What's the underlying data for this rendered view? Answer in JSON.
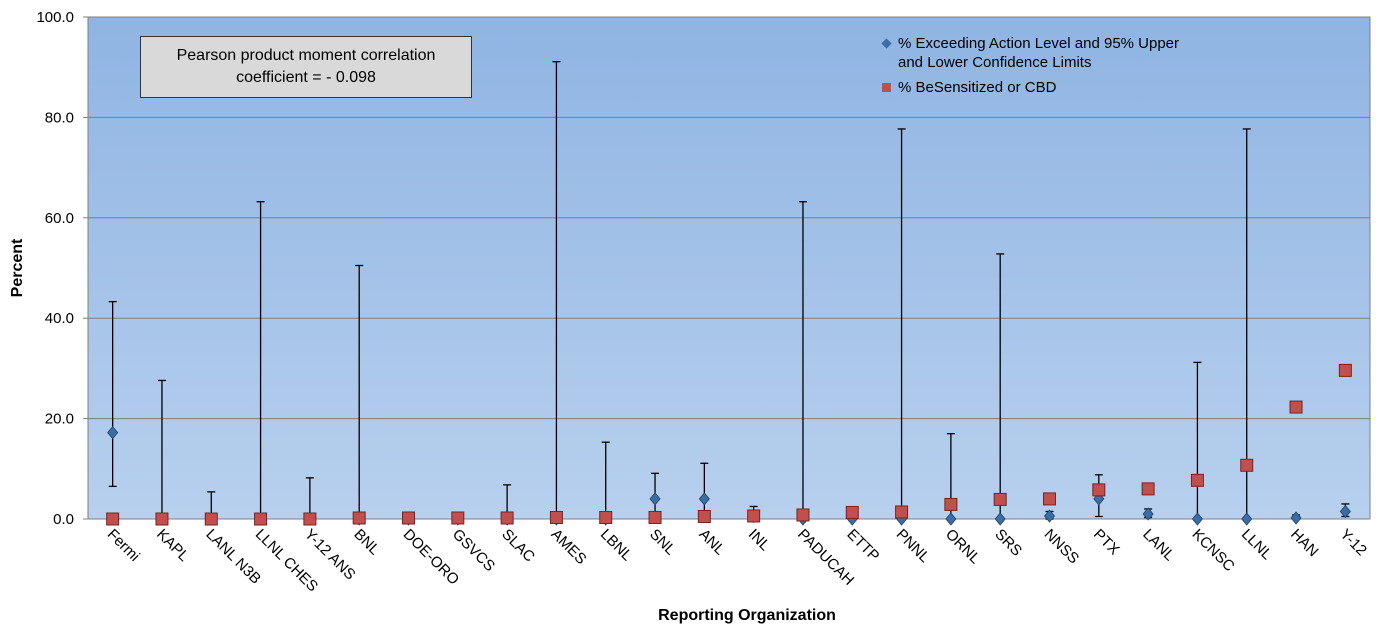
{
  "chart_data": {
    "type": "scatter",
    "title_annotation": [
      "Pearson product moment correlation",
      "coefficient = - 0.098"
    ],
    "xlabel": "Reporting Organization",
    "ylabel": "Percent",
    "categories": [
      "Fermi",
      "KAPL",
      "LANL N3B",
      "LLNL CHES",
      "Y-12 ANS",
      "BNL",
      "DOE-ORO",
      "GSVCS",
      "SLAC",
      "AMES",
      "LBNL",
      "SNL",
      "ANL",
      "INL",
      "PADUCAH",
      "ETTP",
      "PNNL",
      "ORNL",
      "SRS",
      "NNSS",
      "PTX",
      "LANL",
      "KCNSC",
      "LLNL",
      "HAN",
      "Y-12"
    ],
    "series": [
      {
        "name": "% Exceeding Action Level and 95% Upper and Lower Confidence Limits",
        "color": "#3b6ea5",
        "marker": "diamond",
        "values": [
          17.2,
          0,
          0,
          0,
          0,
          0,
          0,
          0,
          0,
          0,
          0,
          4.0,
          4.0,
          0.5,
          0,
          0,
          0,
          0,
          0,
          0.6,
          4.0,
          1.0,
          0,
          0,
          0.2,
          1.5
        ],
        "lower": [
          6.5,
          0,
          0,
          0,
          0,
          0,
          0,
          0,
          0,
          0,
          0,
          0.5,
          0.5,
          0,
          0,
          0,
          0,
          0,
          0,
          0,
          0.5,
          0.3,
          0,
          0,
          0,
          0.5
        ],
        "upper": [
          43.3,
          27.6,
          5.4,
          63.2,
          8.2,
          50.5,
          0,
          0,
          6.8,
          91.1,
          15.3,
          9.1,
          11.1,
          2.5,
          63.2,
          0,
          77.7,
          17.0,
          52.8,
          1.5,
          8.8,
          2.0,
          31.2,
          77.7,
          0.8,
          3.0
        ]
      },
      {
        "name": "% BeSensitized or CBD",
        "color": "#c0504d",
        "marker": "square",
        "values": [
          0,
          0,
          0,
          0,
          0,
          0.2,
          0.2,
          0.2,
          0.2,
          0.3,
          0.3,
          0.3,
          0.5,
          0.6,
          0.8,
          1.3,
          1.4,
          2.9,
          3.9,
          4.0,
          5.8,
          6.0,
          7.7,
          10.7,
          22.3,
          29.6
        ]
      }
    ],
    "ylim": [
      0,
      100
    ],
    "yticks": [
      {
        "value": 0,
        "label": "0.0"
      },
      {
        "value": 20,
        "label": "20.0"
      },
      {
        "value": 40,
        "label": "40.0"
      },
      {
        "value": 60,
        "label": "60.0"
      },
      {
        "value": 80,
        "label": "80.0"
      },
      {
        "value": 100,
        "label": "100.0"
      }
    ],
    "grid": true,
    "legend": "top-right"
  }
}
